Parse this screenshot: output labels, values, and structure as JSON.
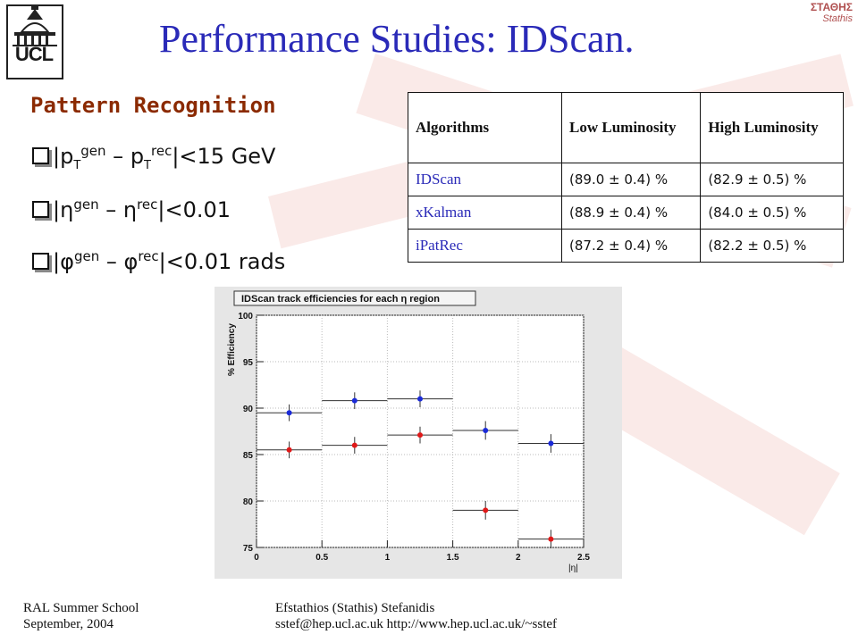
{
  "header": {
    "title": "Performance Studies: IDScan.",
    "logo_text": "UCL",
    "corner_logo_line1": "ΣΤΑΘΗΣ",
    "corner_logo_line2": "Stathis"
  },
  "section": {
    "heading": "Pattern Recognition",
    "criteria": [
      {
        "abs_open": "|",
        "sym": "p",
        "sub": "T",
        "gen": "gen",
        "minus": " – ",
        "sym2": "p",
        "sub2": "T",
        "rec": "rec",
        "cond": "|<15 GeV"
      },
      {
        "abs_open": "|",
        "sym": "η",
        "sub": "",
        "gen": "gen",
        "minus": " – ",
        "sym2": "η",
        "sub2": "",
        "rec": "rec",
        "cond": "|<0.01"
      },
      {
        "abs_open": "|",
        "sym": "φ",
        "sub": "",
        "gen": "gen",
        "minus": " – ",
        "sym2": "φ",
        "sub2": "",
        "rec": "rec",
        "cond": "|<0.01 rads"
      }
    ]
  },
  "table": {
    "headers": [
      "Algorithms",
      "Low Luminosity",
      "High Luminosity"
    ],
    "rows": [
      {
        "name": "IDScan",
        "low": "(89.0 ± 0.4) %",
        "high": "(82.9 ± 0.5) %"
      },
      {
        "name": "xKalman",
        "low": "(88.9 ± 0.4) %",
        "high": "(84.0 ± 0.5) %"
      },
      {
        "name": "iPatRec",
        "low": "(87.2 ± 0.4) %",
        "high": "(82.2 ± 0.5) %"
      }
    ]
  },
  "chart_data": {
    "type": "scatter",
    "title": "IDScan track efficiencies for each η region",
    "xlabel": "|η|",
    "ylabel": "% Efficiency",
    "xlim": [
      0,
      2.5
    ],
    "ylim": [
      75,
      100
    ],
    "xticks": [
      0,
      0.5,
      1,
      1.5,
      2,
      2.5
    ],
    "xtick_labels": [
      "0",
      "0.5",
      "1",
      "1.5",
      "2",
      "2.5"
    ],
    "yticks": [
      75,
      80,
      85,
      90,
      95,
      100
    ],
    "ytick_labels": [
      "75",
      "80",
      "85",
      "90",
      "95",
      "100"
    ],
    "grid": true,
    "bin_edges": [
      0,
      0.5,
      1,
      1.5,
      2,
      2.5
    ],
    "series": [
      {
        "color": "#1a2ad8",
        "values": [
          89.5,
          90.8,
          91.0,
          87.6,
          86.2
        ],
        "errors": [
          0.9,
          0.9,
          0.9,
          1.0,
          1.0
        ]
      },
      {
        "color": "#e01818",
        "values": [
          85.5,
          86.0,
          87.1,
          79.0,
          75.9
        ],
        "errors": [
          0.9,
          0.9,
          0.9,
          1.0,
          1.0
        ]
      }
    ]
  },
  "footer": {
    "left_line1": "RAL Summer School",
    "left_line2": "September,  2004",
    "right_line1": "Efstathios (Stathis) Stefanidis",
    "right_line2": "sstef@hep.ucl.ac.uk   http://www.hep.ucl.ac.uk/~sstef"
  }
}
